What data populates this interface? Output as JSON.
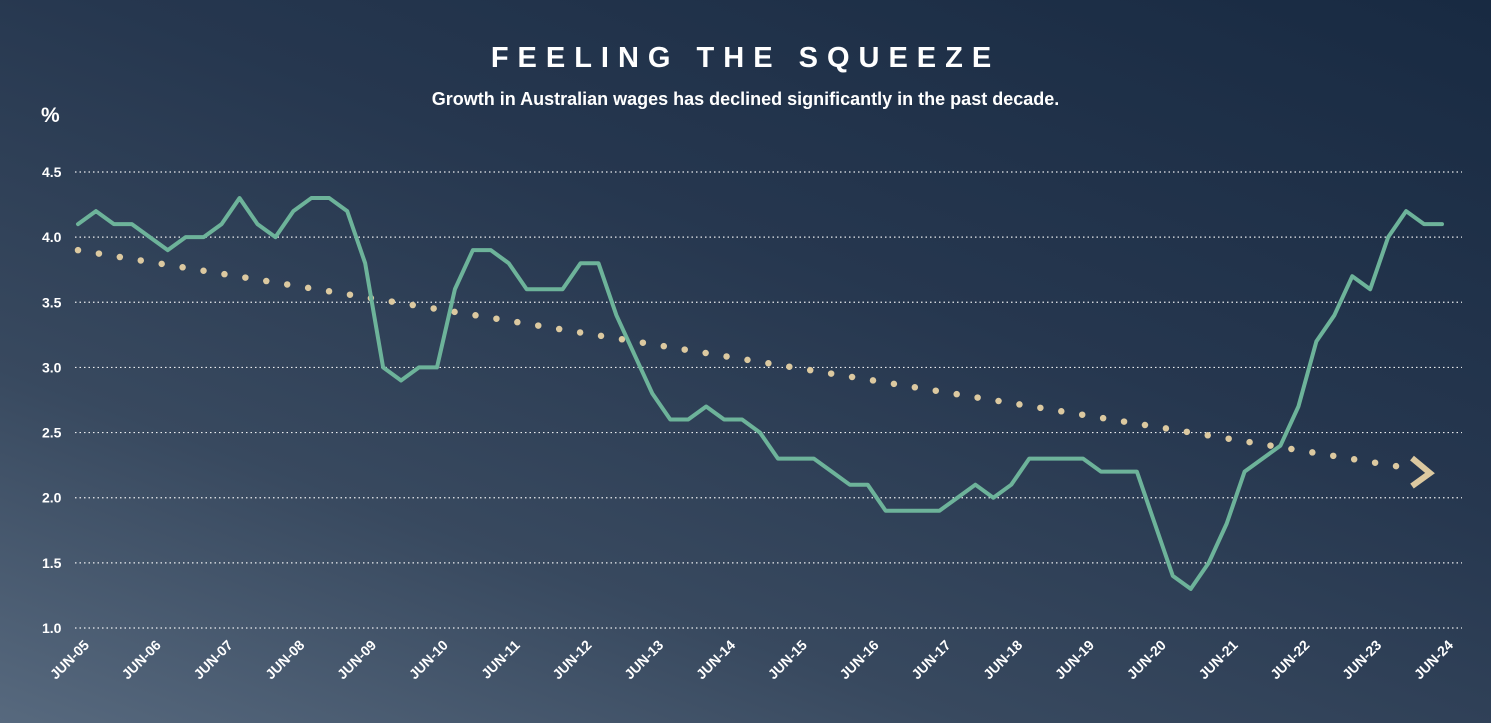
{
  "chart_data": {
    "type": "line",
    "title": "FEELING THE SQUEEZE",
    "subtitle": "Growth in Australian wages has declined significantly in the past decade.",
    "ylabel": "%",
    "ylim": [
      1.0,
      4.5
    ],
    "yticks": [
      "1.0",
      "1.5",
      "2.0",
      "2.5",
      "3.0",
      "3.5",
      "4.0",
      "4.5"
    ],
    "xticks": [
      "JUN-05",
      "JUN-06",
      "JUN-07",
      "JUN-08",
      "JUN-09",
      "JUN-10",
      "JUN-11",
      "JUN-12",
      "JUN-13",
      "JUN-14",
      "JUN-15",
      "JUN-16",
      "JUN-17",
      "JUN-18",
      "JUN-19",
      "JUN-20",
      "JUN-21",
      "JUN-22",
      "JUN-23",
      "JUN-24"
    ],
    "x_start": "JUN-05",
    "x_step": "quarter",
    "grid": true,
    "legend": "none",
    "series": [
      {
        "style": "solid",
        "color": "#6db39a",
        "values": [
          4.1,
          4.2,
          4.1,
          4.1,
          4.0,
          3.9,
          4.0,
          4.0,
          4.1,
          4.3,
          4.1,
          4.0,
          4.2,
          4.3,
          4.3,
          4.2,
          3.8,
          3.0,
          2.9,
          3.0,
          3.0,
          3.6,
          3.9,
          3.9,
          3.8,
          3.6,
          3.6,
          3.6,
          3.8,
          3.8,
          3.4,
          3.1,
          2.8,
          2.6,
          2.6,
          2.7,
          2.6,
          2.6,
          2.5,
          2.3,
          2.3,
          2.3,
          2.2,
          2.1,
          2.1,
          1.9,
          1.9,
          1.9,
          1.9,
          2.0,
          2.1,
          2.0,
          2.1,
          2.3,
          2.3,
          2.3,
          2.3,
          2.2,
          2.2,
          2.2,
          1.8,
          1.4,
          1.3,
          1.5,
          1.8,
          2.2,
          2.3,
          2.4,
          2.7,
          3.2,
          3.4,
          3.7,
          3.6,
          4.0,
          4.2,
          4.1,
          4.1
        ]
      },
      {
        "style": "dotted",
        "color": "#dcc9a0",
        "values": [
          3.9,
          2.22
        ],
        "x_range": [
          "JUN-05",
          "JUN-24"
        ],
        "arrow_end": true
      }
    ]
  }
}
